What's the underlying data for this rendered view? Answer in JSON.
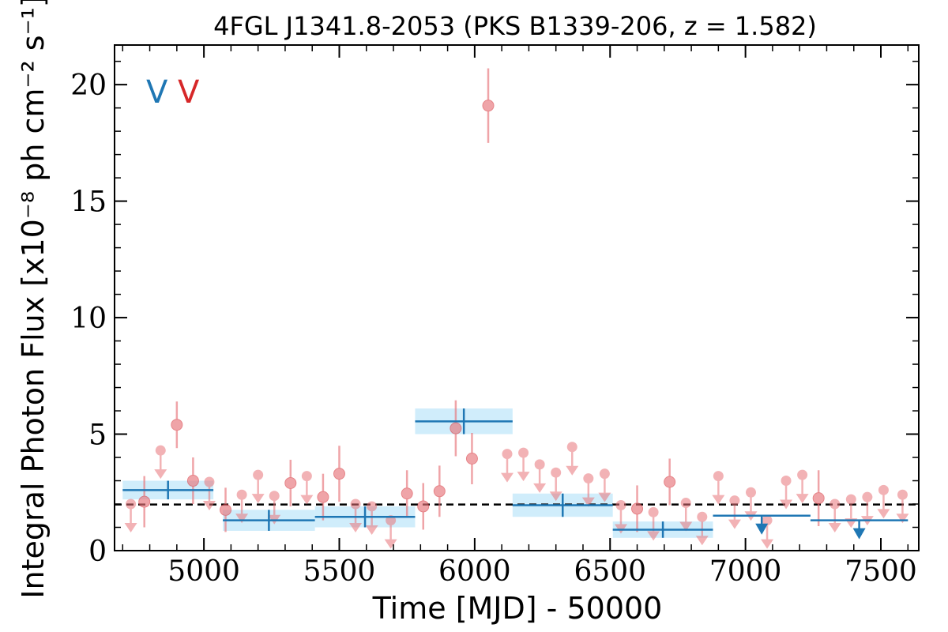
{
  "chart_data": {
    "type": "scatter",
    "title": "4FGL J1341.8-2053 (PKS B1339-206, z = 1.582)",
    "xlabel": "Time [MJD] - 50000",
    "ylabel": "Integral Photon Flux [x10⁻⁸ ph cm⁻² s⁻¹]",
    "xlim": [
      4670,
      7640
    ],
    "ylim": [
      0,
      21.7
    ],
    "xticks": [
      "5000",
      "5500",
      "6000",
      "6500",
      "7000",
      "7500"
    ],
    "xtick_values": [
      5000,
      5500,
      6000,
      6500,
      7000,
      7500
    ],
    "yticks": [
      "0",
      "5",
      "10",
      "15",
      "20"
    ],
    "ytick_values": [
      0,
      5,
      10,
      15,
      20
    ],
    "legend_markers": [
      {
        "symbol": "V",
        "color": "#1f77b4"
      },
      {
        "symbol": "V",
        "color": "#d62728"
      }
    ],
    "reference_line": {
      "y": 1.98,
      "style": "dashed",
      "color": "#000000"
    },
    "series": [
      {
        "color": "#e8747a",
        "detections": [
          {
            "x": 4780,
            "y": 2.1,
            "lo": 1.0,
            "hi": 3.2
          },
          {
            "x": 4900,
            "y": 5.4,
            "lo": 4.4,
            "hi": 6.4
          },
          {
            "x": 4960,
            "y": 3.0,
            "lo": 2.0,
            "hi": 4.0
          },
          {
            "x": 5080,
            "y": 1.75,
            "lo": 0.8,
            "hi": 2.7
          },
          {
            "x": 5320,
            "y": 2.9,
            "lo": 1.9,
            "hi": 3.9
          },
          {
            "x": 5440,
            "y": 2.3,
            "lo": 1.3,
            "hi": 3.3
          },
          {
            "x": 5500,
            "y": 3.3,
            "lo": 2.1,
            "hi": 4.5
          },
          {
            "x": 5750,
            "y": 2.45,
            "lo": 1.45,
            "hi": 3.45
          },
          {
            "x": 5810,
            "y": 1.9,
            "lo": 0.9,
            "hi": 2.9
          },
          {
            "x": 5870,
            "y": 2.55,
            "lo": 1.45,
            "hi": 3.65
          },
          {
            "x": 5930,
            "y": 5.25,
            "lo": 4.05,
            "hi": 6.45
          },
          {
            "x": 5990,
            "y": 3.95,
            "lo": 2.85,
            "hi": 5.05
          },
          {
            "x": 6050,
            "y": 19.1,
            "lo": 17.5,
            "hi": 20.7
          },
          {
            "x": 6600,
            "y": 1.8,
            "lo": 0.8,
            "hi": 2.8
          },
          {
            "x": 6720,
            "y": 2.95,
            "lo": 1.95,
            "hi": 3.95
          },
          {
            "x": 7270,
            "y": 2.25,
            "lo": 1.05,
            "hi": 3.45
          }
        ],
        "upper_limits": [
          {
            "x": 4730,
            "y": 2.0
          },
          {
            "x": 4840,
            "y": 4.3
          },
          {
            "x": 5020,
            "y": 2.95
          },
          {
            "x": 5140,
            "y": 2.4
          },
          {
            "x": 5200,
            "y": 3.25
          },
          {
            "x": 5260,
            "y": 2.35
          },
          {
            "x": 5380,
            "y": 3.2
          },
          {
            "x": 5560,
            "y": 2.0
          },
          {
            "x": 5620,
            "y": 1.9
          },
          {
            "x": 5690,
            "y": 1.3
          },
          {
            "x": 6120,
            "y": 4.15
          },
          {
            "x": 6180,
            "y": 4.2
          },
          {
            "x": 6240,
            "y": 3.7
          },
          {
            "x": 6300,
            "y": 3.35
          },
          {
            "x": 6360,
            "y": 4.45
          },
          {
            "x": 6420,
            "y": 3.1
          },
          {
            "x": 6480,
            "y": 3.3
          },
          {
            "x": 6540,
            "y": 1.95
          },
          {
            "x": 6660,
            "y": 1.65
          },
          {
            "x": 6780,
            "y": 2.05
          },
          {
            "x": 6840,
            "y": 1.45
          },
          {
            "x": 6900,
            "y": 3.2
          },
          {
            "x": 6960,
            "y": 2.15
          },
          {
            "x": 7020,
            "y": 2.5
          },
          {
            "x": 7080,
            "y": 1.3
          },
          {
            "x": 7150,
            "y": 3.0
          },
          {
            "x": 7210,
            "y": 3.25
          },
          {
            "x": 7330,
            "y": 2.0
          },
          {
            "x": 7390,
            "y": 2.2
          },
          {
            "x": 7450,
            "y": 2.3
          },
          {
            "x": 7510,
            "y": 2.6
          },
          {
            "x": 7580,
            "y": 2.4
          }
        ]
      },
      {
        "color": "#1f77b4",
        "band_color": "#c8eafa",
        "bins": [
          {
            "x0": 4700,
            "x1": 5035,
            "y": 2.6,
            "lo": 2.2,
            "hi": 3.0
          },
          {
            "x0": 5070,
            "x1": 5410,
            "y": 1.3,
            "lo": 0.85,
            "hi": 1.75
          },
          {
            "x0": 5410,
            "x1": 5780,
            "y": 1.45,
            "lo": 1.0,
            "hi": 1.9
          },
          {
            "x0": 5780,
            "x1": 6140,
            "y": 5.55,
            "lo": 5.0,
            "hi": 6.1
          },
          {
            "x0": 6140,
            "x1": 6510,
            "y": 1.95,
            "lo": 1.45,
            "hi": 2.45
          },
          {
            "x0": 6510,
            "x1": 6880,
            "y": 0.9,
            "lo": 0.55,
            "hi": 1.25
          }
        ],
        "upper_limit_bins": [
          {
            "x0": 6880,
            "x1": 7240,
            "y": 1.5
          },
          {
            "x0": 7240,
            "x1": 7600,
            "y": 1.3
          }
        ]
      }
    ]
  }
}
